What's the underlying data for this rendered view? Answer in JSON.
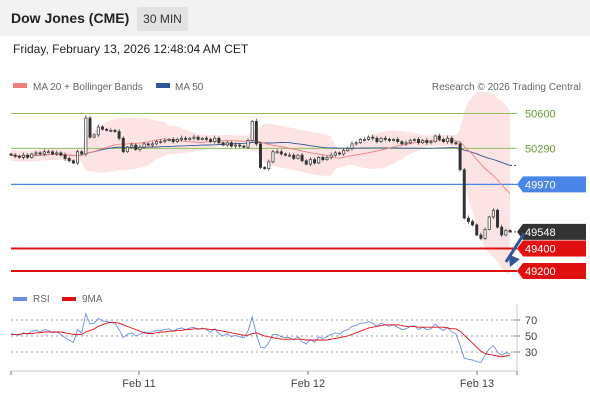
{
  "header": {
    "title": "Dow Jones (CME)",
    "timeframe": "30 MIN"
  },
  "datetime": "Friday, February 13, 2026 12:48:04 AM CET",
  "legend": {
    "ma20": "MA 20 + Bollinger Bands",
    "ma50": "MA 50"
  },
  "attribution": "Research © 2026 Trading Central",
  "colors": {
    "ma20": "#f08080",
    "ma50": "#2f5597",
    "bands": "#fde4e4",
    "resistance": "#8dbf5a",
    "pivot": "#4a86e8",
    "support": "#e01010",
    "current": "#333333",
    "arrow": "#2f5597",
    "rsi": "#6a8fe0",
    "rsi_ma": "#e01010"
  },
  "chart_data": [
    {
      "type": "candlestick",
      "ylim": [
        49120,
        50720
      ],
      "x_tick_labels": [
        "Feb 11",
        "Feb 12",
        "Feb 13"
      ],
      "resistance_levels": [
        50600,
        50290
      ],
      "pivot_level": 49970,
      "support_levels": [
        49400,
        49200
      ],
      "current_price": 49548,
      "level_labels": {
        "r1": "50600",
        "r2": "50290",
        "pivot": "49970",
        "current": "49548",
        "s1": "49400",
        "s2": "49200"
      },
      "closes": [
        50230,
        50220,
        50210,
        50230,
        50210,
        50240,
        50250,
        50240,
        50260,
        50260,
        50240,
        50250,
        50230,
        50200,
        50180,
        50160,
        50260,
        50240,
        50560,
        50390,
        50410,
        50480,
        50460,
        50450,
        50450,
        50440,
        50380,
        50260,
        50300,
        50320,
        50280,
        50300,
        50330,
        50320,
        50330,
        50350,
        50350,
        50360,
        50370,
        50350,
        50370,
        50380,
        50370,
        50380,
        50390,
        50370,
        50380,
        50370,
        50350,
        50380,
        50340,
        50320,
        50340,
        50310,
        50320,
        50310,
        50300,
        50360,
        50530,
        50330,
        50120,
        50110,
        50170,
        50260,
        50260,
        50240,
        50230,
        50230,
        50200,
        50230,
        50180,
        50150,
        50190,
        50160,
        50210,
        50190,
        50210,
        50230,
        50250,
        50240,
        50270,
        50290,
        50330,
        50340,
        50370,
        50370,
        50390,
        50380,
        50350,
        50380,
        50370,
        50360,
        50370,
        50350,
        50330,
        50340,
        50360,
        50370,
        50340,
        50360,
        50340,
        50350,
        50400,
        50370,
        50350,
        50380,
        50340,
        50330,
        50100,
        49670,
        49640,
        49610,
        49520,
        49490,
        49570,
        49680,
        49740,
        49590,
        49520,
        49560,
        49548
      ],
      "ma20_label_visible": false,
      "ma50_color": "#2f5597",
      "ma20_color": "#f08080",
      "arrow_direction": "down"
    },
    {
      "type": "line",
      "name": "RSI panel",
      "ylim": [
        10,
        80
      ],
      "y_ticks": [
        70,
        50,
        30
      ],
      "y_tick_labels": [
        "70",
        "50",
        "30"
      ],
      "series": [
        {
          "name": "RSI",
          "values": [
            53,
            52,
            51,
            54,
            52,
            56,
            57,
            55,
            58,
            57,
            54,
            55,
            52,
            48,
            45,
            42,
            58,
            54,
            78,
            65,
            66,
            72,
            69,
            68,
            67,
            66,
            58,
            48,
            52,
            54,
            50,
            52,
            55,
            54,
            55,
            57,
            57,
            58,
            59,
            56,
            59,
            60,
            58,
            60,
            61,
            58,
            60,
            58,
            55,
            59,
            53,
            50,
            53,
            49,
            51,
            49,
            48,
            56,
            74,
            52,
            36,
            35,
            42,
            52,
            52,
            49,
            48,
            48,
            45,
            49,
            43,
            40,
            46,
            42,
            49,
            47,
            49,
            52,
            54,
            52,
            56,
            58,
            62,
            63,
            66,
            66,
            68,
            66,
            62,
            66,
            64,
            62,
            64,
            61,
            58,
            59,
            62,
            63,
            58,
            61,
            58,
            59,
            65,
            60,
            57,
            61,
            55,
            53,
            38,
            22,
            21,
            20,
            18,
            17,
            26,
            34,
            38,
            30,
            26,
            29,
            28
          ]
        },
        {
          "name": "9MA",
          "values": [
            52,
            52,
            52,
            53,
            53,
            53,
            54,
            54,
            55,
            55,
            55,
            55,
            55,
            54,
            53,
            52,
            52,
            52,
            55,
            57,
            59,
            62,
            64,
            66,
            67,
            67,
            66,
            64,
            62,
            60,
            58,
            56,
            54,
            53,
            53,
            54,
            55,
            55,
            56,
            56,
            57,
            57,
            58,
            58,
            59,
            59,
            59,
            59,
            58,
            58,
            57,
            56,
            55,
            54,
            53,
            52,
            51,
            51,
            53,
            54,
            52,
            50,
            49,
            48,
            47,
            46,
            46,
            46,
            46,
            46,
            46,
            45,
            45,
            45,
            45,
            45,
            45,
            46,
            47,
            48,
            49,
            50,
            52,
            54,
            56,
            58,
            60,
            61,
            62,
            63,
            64,
            64,
            64,
            64,
            63,
            62,
            62,
            62,
            61,
            61,
            61,
            61,
            61,
            61,
            61,
            60,
            59,
            59,
            56,
            51,
            46,
            41,
            36,
            31,
            28,
            27,
            26,
            25,
            24,
            25,
            26
          ]
        }
      ]
    }
  ]
}
